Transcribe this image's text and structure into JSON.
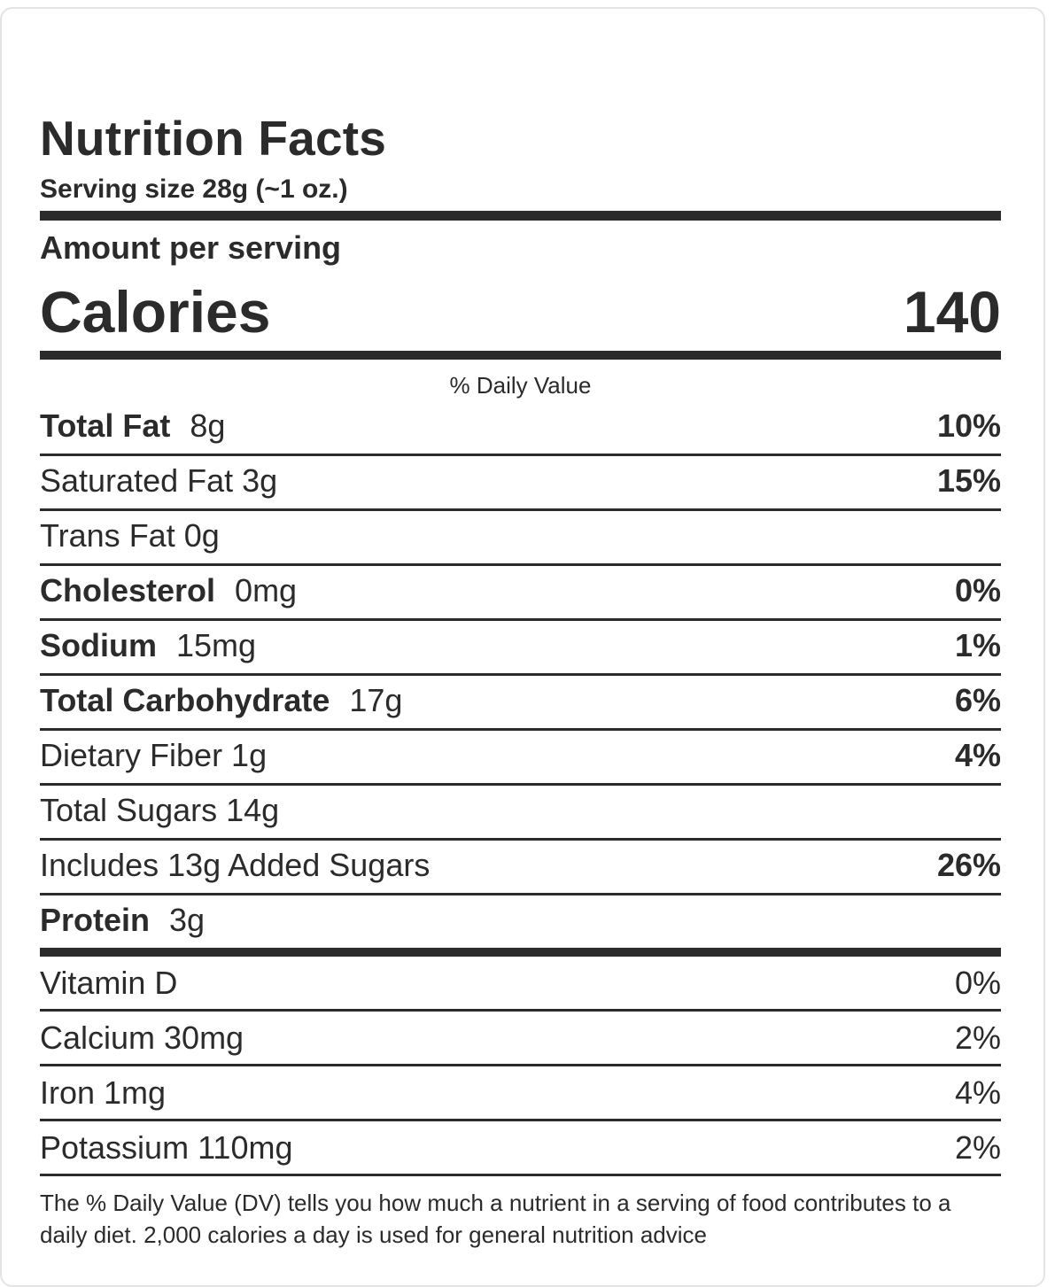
{
  "title": "Nutrition Facts",
  "serving_size": "Serving size 28g (~1 oz.)",
  "amount_per_serving": "Amount per serving",
  "calories": {
    "label": "Calories",
    "value": "140"
  },
  "daily_value_header": "% Daily Value",
  "nutrients": [
    {
      "name": "Total Fat",
      "amount": "8g",
      "dv": "10%",
      "bold": true
    },
    {
      "name": "",
      "amount": "Saturated Fat 3g",
      "dv": "15%",
      "bold": false
    },
    {
      "name": "",
      "amount": "Trans Fat 0g",
      "dv": "",
      "bold": false
    },
    {
      "name": "Cholesterol",
      "amount": "0mg",
      "dv": "0%",
      "bold": true
    },
    {
      "name": "Sodium",
      "amount": "15mg",
      "dv": "1%",
      "bold": true
    },
    {
      "name": "Total Carbohydrate",
      "amount": "17g",
      "dv": "6%",
      "bold": true
    },
    {
      "name": "",
      "amount": "Dietary Fiber 1g",
      "dv": "4%",
      "bold": false
    },
    {
      "name": "",
      "amount": "Total Sugars 14g",
      "dv": "",
      "bold": false
    },
    {
      "name": "",
      "amount": "Includes 13g Added Sugars",
      "dv": "26%",
      "bold": false
    },
    {
      "name": "Protein",
      "amount": "3g",
      "dv": "",
      "bold": true
    }
  ],
  "vitamins": [
    {
      "label": "Vitamin D",
      "dv": "0%"
    },
    {
      "label": "Calcium 30mg",
      "dv": "2%"
    },
    {
      "label": "Iron 1mg",
      "dv": "4%"
    },
    {
      "label": "Potassium 110mg",
      "dv": "2%"
    }
  ],
  "footnote": "The % Daily Value (DV) tells you how much a nutrient in a serving of food contributes to a daily diet. 2,000 calories a day is used for general nutrition advice"
}
